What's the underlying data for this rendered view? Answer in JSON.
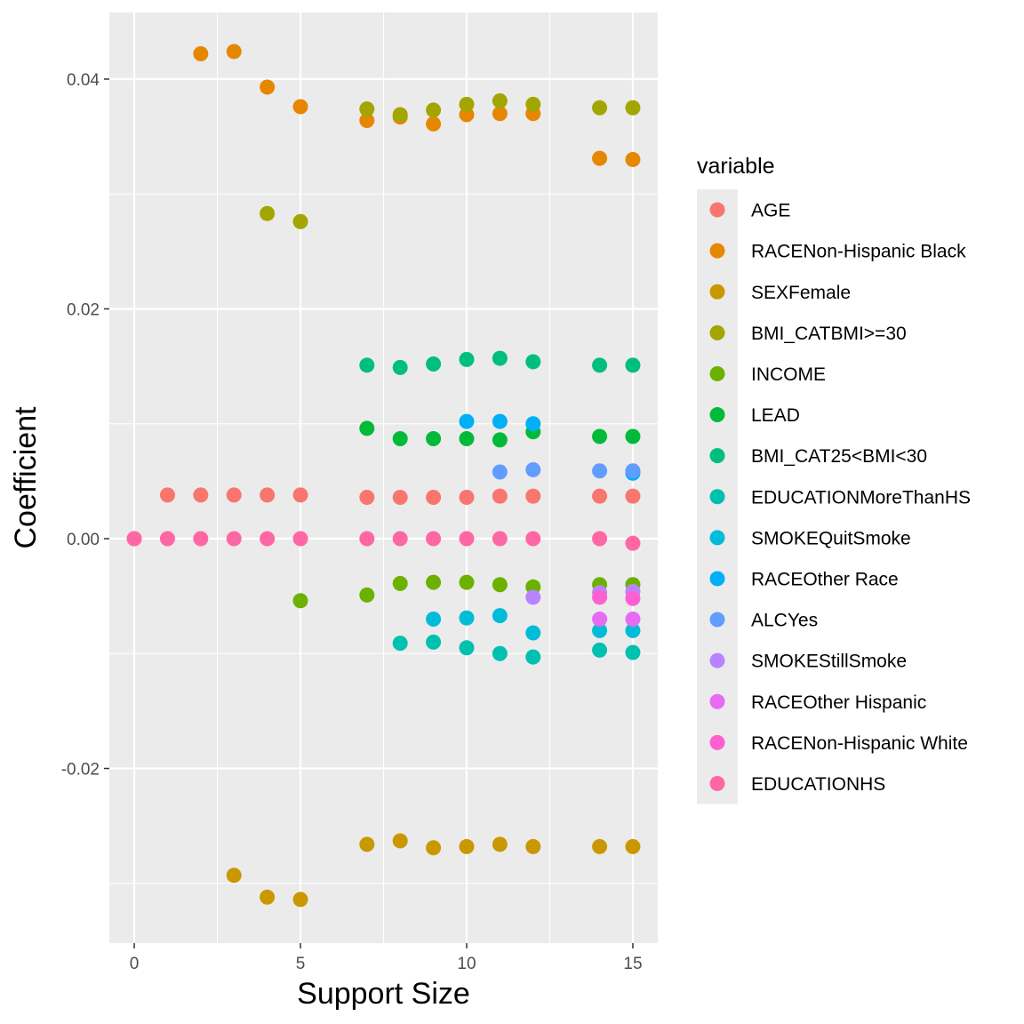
{
  "chart_data": {
    "type": "scatter",
    "xlabel": "Support Size",
    "ylabel": "Coefficient",
    "xlim": [
      -0.75,
      15.75
    ],
    "ylim": [
      -0.0352,
      0.0458
    ],
    "x_ticks": [
      0,
      5,
      10,
      15
    ],
    "x_tick_labels": [
      "0",
      "5",
      "10",
      "15"
    ],
    "y_ticks": [
      -0.02,
      0.0,
      0.02,
      0.04
    ],
    "y_tick_labels": [
      "-0.02",
      "0.00",
      "0.02",
      "0.04"
    ],
    "grid": true,
    "legend": {
      "title": "variable",
      "position": "right"
    },
    "series": [
      {
        "name": "AGE",
        "color": "#F8766D",
        "points": [
          [
            0,
            0.0
          ],
          [
            1,
            0.0038
          ],
          [
            2,
            0.0038
          ],
          [
            3,
            0.0038
          ],
          [
            4,
            0.0038
          ],
          [
            5,
            0.0038
          ],
          [
            7,
            0.0036
          ],
          [
            8,
            0.0036
          ],
          [
            9,
            0.0036
          ],
          [
            10,
            0.0036
          ],
          [
            11,
            0.0037
          ],
          [
            12,
            0.0037
          ],
          [
            14,
            0.0037
          ],
          [
            15,
            0.0037
          ]
        ]
      },
      {
        "name": "RACENon-Hispanic Black",
        "color": "#E58700",
        "points": [
          [
            2,
            0.0422
          ],
          [
            3,
            0.0424
          ],
          [
            4,
            0.0393
          ],
          [
            5,
            0.0376
          ],
          [
            7,
            0.0364
          ],
          [
            8,
            0.0367
          ],
          [
            9,
            0.0361
          ],
          [
            10,
            0.0369
          ],
          [
            11,
            0.037
          ],
          [
            12,
            0.037
          ],
          [
            14,
            0.0331
          ],
          [
            15,
            0.033
          ]
        ]
      },
      {
        "name": "SEXFemale",
        "color": "#C99800",
        "points": [
          [
            3,
            -0.0293
          ],
          [
            4,
            -0.0312
          ],
          [
            5,
            -0.0314
          ],
          [
            7,
            -0.0266
          ],
          [
            8,
            -0.0263
          ],
          [
            9,
            -0.0269
          ],
          [
            10,
            -0.0268
          ],
          [
            11,
            -0.0266
          ],
          [
            12,
            -0.0268
          ],
          [
            14,
            -0.0268
          ],
          [
            15,
            -0.0268
          ]
        ]
      },
      {
        "name": "BMI_CATBMI>=30",
        "color": "#A3A500",
        "points": [
          [
            4,
            0.0283
          ],
          [
            5,
            0.0276
          ],
          [
            7,
            0.0374
          ],
          [
            8,
            0.0369
          ],
          [
            9,
            0.0373
          ],
          [
            10,
            0.0378
          ],
          [
            11,
            0.0381
          ],
          [
            12,
            0.0378
          ],
          [
            14,
            0.0375
          ],
          [
            15,
            0.0375
          ]
        ]
      },
      {
        "name": "INCOME",
        "color": "#6BB100",
        "points": [
          [
            5,
            -0.0054
          ],
          [
            7,
            -0.0049
          ],
          [
            8,
            -0.0039
          ],
          [
            9,
            -0.0038
          ],
          [
            10,
            -0.0038
          ],
          [
            11,
            -0.004
          ],
          [
            12,
            -0.0042
          ],
          [
            14,
            -0.004
          ],
          [
            15,
            -0.004
          ]
        ]
      },
      {
        "name": "LEAD",
        "color": "#00BA38",
        "points": [
          [
            7,
            0.0096
          ],
          [
            8,
            0.0087
          ],
          [
            9,
            0.0087
          ],
          [
            10,
            0.0087
          ],
          [
            11,
            0.0086
          ],
          [
            12,
            0.0093
          ],
          [
            14,
            0.0089
          ],
          [
            15,
            0.0089
          ]
        ]
      },
      {
        "name": "BMI_CAT25<BMI<30",
        "color": "#00BF7D",
        "points": [
          [
            7,
            0.0151
          ],
          [
            8,
            0.0149
          ],
          [
            9,
            0.0152
          ],
          [
            10,
            0.0156
          ],
          [
            11,
            0.0157
          ],
          [
            12,
            0.0154
          ],
          [
            14,
            0.0151
          ],
          [
            15,
            0.0151
          ]
        ]
      },
      {
        "name": "EDUCATIONMoreThanHS",
        "color": "#00C0AF",
        "points": [
          [
            8,
            -0.0091
          ],
          [
            9,
            -0.009
          ],
          [
            10,
            -0.0095
          ],
          [
            11,
            -0.01
          ],
          [
            12,
            -0.0103
          ],
          [
            14,
            -0.0097
          ],
          [
            15,
            -0.0099
          ]
        ]
      },
      {
        "name": "SMOKEQuitSmoke",
        "color": "#00BCD8",
        "points": [
          [
            9,
            -0.007
          ],
          [
            10,
            -0.0069
          ],
          [
            11,
            -0.0067
          ],
          [
            12,
            -0.0082
          ],
          [
            14,
            -0.008
          ],
          [
            15,
            -0.008
          ]
        ]
      },
      {
        "name": "RACEOther Race",
        "color": "#00B0F6",
        "points": [
          [
            10,
            0.0102
          ],
          [
            11,
            0.0102
          ],
          [
            12,
            0.01
          ],
          [
            15,
            0.0057
          ]
        ]
      },
      {
        "name": "ALCYes",
        "color": "#619CFF",
        "points": [
          [
            11,
            0.0058
          ],
          [
            12,
            0.006
          ],
          [
            14,
            0.0059
          ],
          [
            15,
            0.0059
          ]
        ]
      },
      {
        "name": "SMOKEStillSmoke",
        "color": "#B983FF",
        "points": [
          [
            12,
            -0.0051
          ],
          [
            14,
            -0.0047
          ],
          [
            15,
            -0.0046
          ]
        ]
      },
      {
        "name": "RACEOther Hispanic",
        "color": "#E76BF3",
        "points": [
          [
            14,
            -0.007
          ],
          [
            15,
            -0.007
          ]
        ]
      },
      {
        "name": "RACENon-Hispanic White",
        "color": "#FD61D1",
        "points": [
          [
            14,
            -0.0051
          ],
          [
            15,
            -0.0052
          ]
        ]
      },
      {
        "name": "EDUCATIONHS",
        "color": "#FF67A4",
        "points": [
          [
            0,
            0.0
          ],
          [
            1,
            0.0
          ],
          [
            2,
            0.0
          ],
          [
            3,
            0.0
          ],
          [
            4,
            0.0
          ],
          [
            5,
            0.0
          ],
          [
            7,
            0.0
          ],
          [
            8,
            0.0
          ],
          [
            9,
            0.0
          ],
          [
            10,
            0.0
          ],
          [
            11,
            0.0
          ],
          [
            12,
            0.0
          ],
          [
            14,
            0.0
          ],
          [
            15,
            -0.0004
          ]
        ]
      }
    ]
  }
}
